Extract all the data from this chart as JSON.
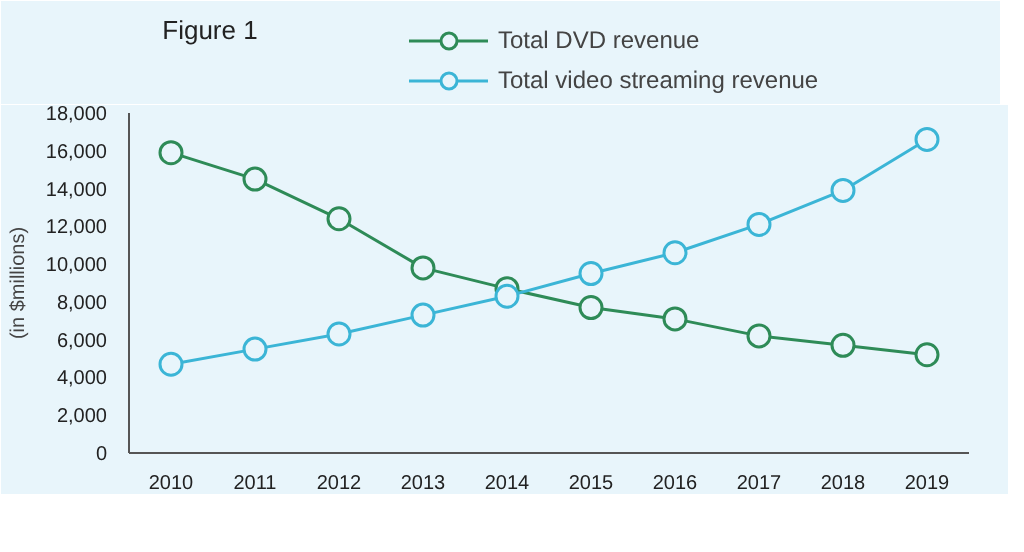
{
  "chart_data": {
    "type": "line",
    "title": "Figure 1",
    "ylabel": "(in $millions)",
    "categories": [
      "2010",
      "2011",
      "2012",
      "2013",
      "2014",
      "2015",
      "2016",
      "2017",
      "2018",
      "2019"
    ],
    "series": [
      {
        "name": "Total DVD revenue",
        "color": "#2e8b57",
        "values": [
          15900,
          14500,
          12400,
          9800,
          8700,
          7700,
          7100,
          6200,
          5700,
          5200
        ]
      },
      {
        "name": "Total video streaming revenue",
        "color": "#3bb5d6",
        "values": [
          4700,
          5500,
          6300,
          7300,
          8300,
          9500,
          10600,
          12100,
          13900,
          16600
        ]
      }
    ],
    "ylim": [
      0,
      18000
    ],
    "yticks": [
      {
        "value": 0,
        "label": "0"
      },
      {
        "value": 2000,
        "label": "2,000"
      },
      {
        "value": 4000,
        "label": "4,000"
      },
      {
        "value": 6000,
        "label": "6,000"
      },
      {
        "value": 8000,
        "label": "8,000"
      },
      {
        "value": 10000,
        "label": "10,000"
      },
      {
        "value": 12000,
        "label": "12,000"
      },
      {
        "value": 14000,
        "label": "14,000"
      },
      {
        "value": 16000,
        "label": "16,000"
      },
      {
        "value": 18000,
        "label": "18,000"
      }
    ],
    "grid": false,
    "legend": "top",
    "marker": "circle",
    "line_style": "solid"
  }
}
